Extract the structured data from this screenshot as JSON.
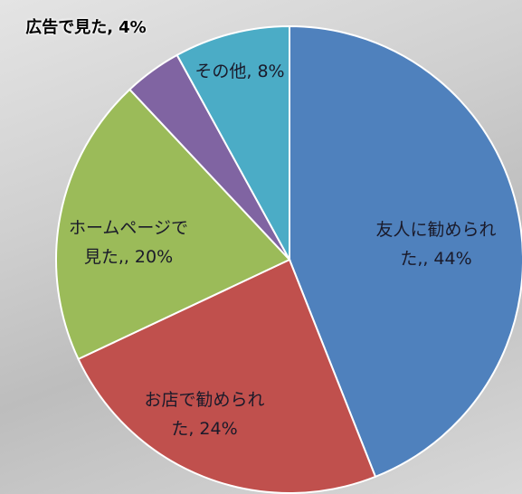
{
  "chart_data": {
    "type": "pie",
    "categories": [
      "友人に勧められた,,",
      "お店で勧められた,",
      "ホームページで見た,,",
      "広告で見た,",
      "その他,"
    ],
    "values": [
      44,
      24,
      20,
      4,
      8
    ],
    "value_labels": [
      "44%",
      "24%",
      "20%",
      "4%",
      "8%"
    ],
    "colors": [
      "#4f81bd",
      "#c0504d",
      "#9bbb59",
      "#8064a2",
      "#4bacc6"
    ]
  }
}
